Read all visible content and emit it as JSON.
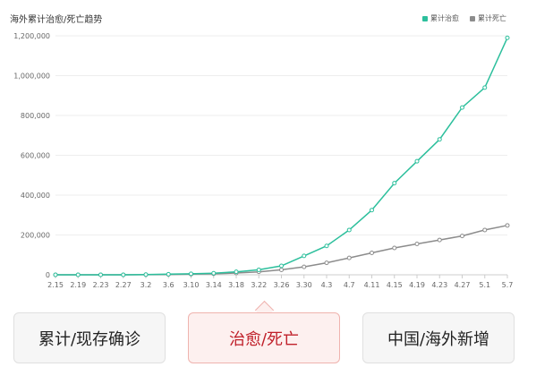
{
  "chart_data": {
    "type": "line",
    "title": "海外累计治愈/死亡趋势",
    "xlabel": "",
    "ylabel": "",
    "categories": [
      "2.15",
      "2.19",
      "2.23",
      "2.27",
      "3.2",
      "3.6",
      "3.10",
      "3.14",
      "3.18",
      "3.22",
      "3.26",
      "3.30",
      "4.3",
      "4.7",
      "4.11",
      "4.15",
      "4.19",
      "4.23",
      "4.27",
      "5.1",
      "5.7"
    ],
    "y_ticks": [
      "0",
      "200,000",
      "400,000",
      "600,000",
      "800,000",
      "1,000,000",
      "1,200,000"
    ],
    "ylim": [
      0,
      1200000
    ],
    "legend_position": "top-right",
    "grid": true,
    "series": [
      {
        "name": "累计治愈",
        "color": "#2cbf9c",
        "values": [
          0,
          0,
          0,
          0,
          1000,
          3000,
          5000,
          8000,
          15000,
          25000,
          45000,
          95000,
          145000,
          225000,
          325000,
          460000,
          570000,
          680000,
          840000,
          940000,
          1190000
        ]
      },
      {
        "name": "累计死亡",
        "color": "#8c8c8c",
        "values": [
          0,
          0,
          0,
          0,
          500,
          1500,
          3000,
          5000,
          9000,
          15000,
          25000,
          40000,
          60000,
          85000,
          110000,
          135000,
          155000,
          175000,
          195000,
          225000,
          248000
        ]
      }
    ]
  },
  "tabs": [
    {
      "label": "累计/现存确诊"
    },
    {
      "label": "治愈/死亡"
    },
    {
      "label": "中国/海外新增"
    }
  ]
}
